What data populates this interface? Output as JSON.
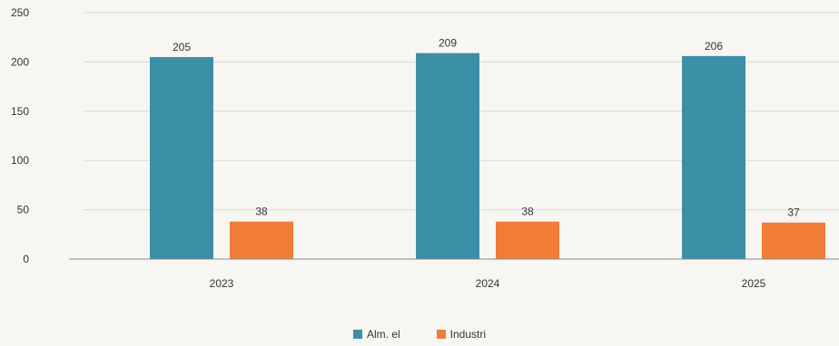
{
  "chart_data": {
    "type": "bar",
    "categories": [
      "2023",
      "2024",
      "2025"
    ],
    "series": [
      {
        "name": "Alm. el",
        "values": [
          205,
          209,
          206
        ],
        "color": "#3b8fa6"
      },
      {
        "name": "Industri",
        "values": [
          38,
          38,
          37
        ],
        "color": "#f07c36"
      }
    ],
    "ylim": [
      0,
      250
    ],
    "yticks": [
      0,
      50,
      100,
      150,
      200,
      250
    ],
    "grid": true,
    "legend_position": "bottom"
  }
}
